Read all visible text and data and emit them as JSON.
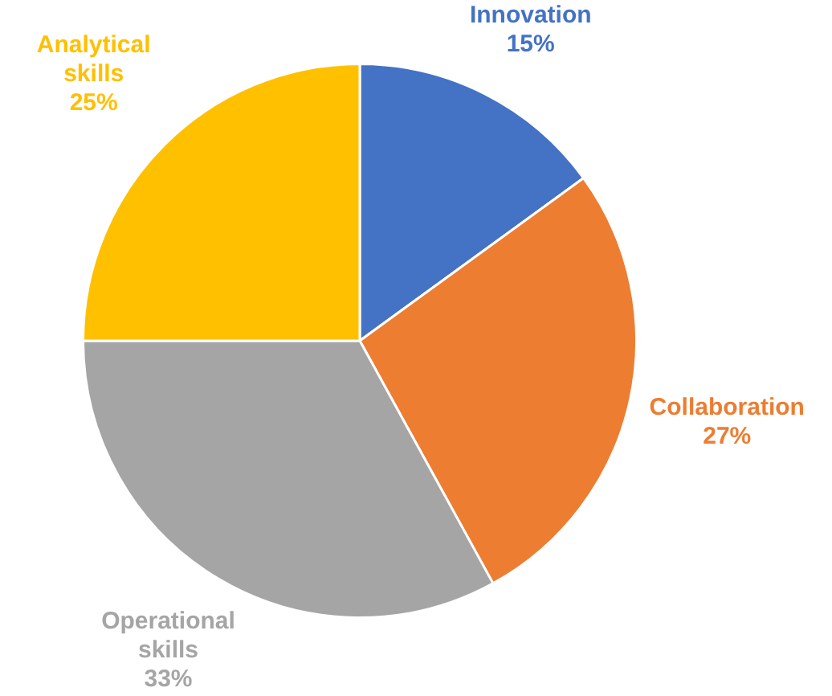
{
  "chart_data": {
    "type": "pie",
    "categories": [
      "Innovation",
      "Collaboration",
      "Operational skills",
      "Analytical skills"
    ],
    "values": [
      15,
      27,
      33,
      25
    ],
    "colors": [
      "#4472c4",
      "#ed7d31",
      "#a5a5a5",
      "#ffc000"
    ],
    "value_labels": [
      "15%",
      "27%",
      "33%",
      "25%"
    ],
    "legend": false
  }
}
